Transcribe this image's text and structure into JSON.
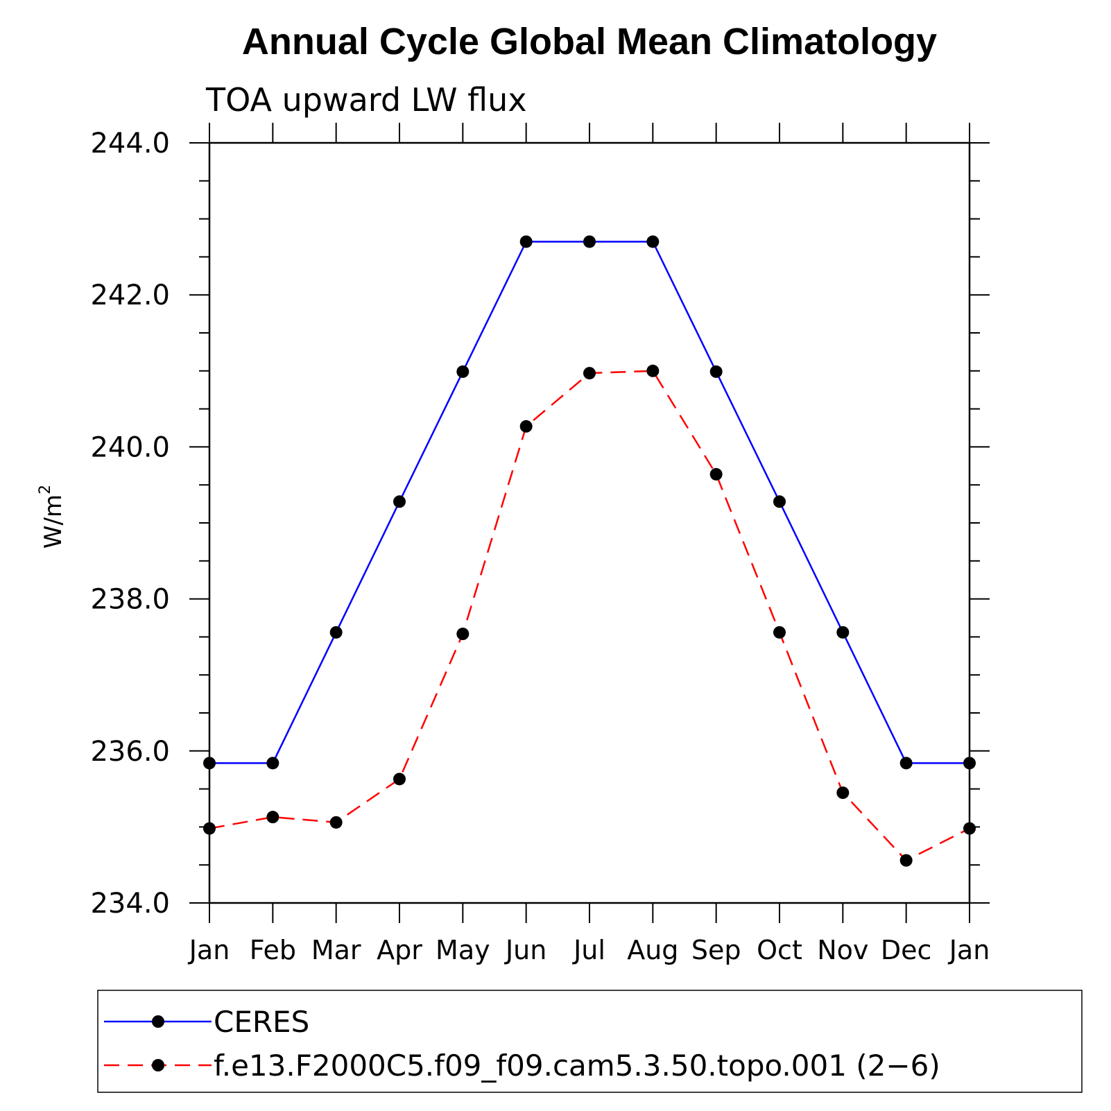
{
  "chart_data": {
    "type": "line",
    "title": "Annual Cycle Global Mean Climatology",
    "subtitle": "TOA upward LW flux",
    "ylabel_base": "W/m",
    "ylabel_sup": "2",
    "xlabel": "",
    "categories": [
      "Jan",
      "Feb",
      "Mar",
      "Apr",
      "May",
      "Jun",
      "Jul",
      "Aug",
      "Sep",
      "Oct",
      "Nov",
      "Dec",
      "Jan"
    ],
    "ylim": [
      234.0,
      244.0
    ],
    "yticks": [
      234.0,
      236.0,
      238.0,
      240.0,
      242.0,
      244.0
    ],
    "ytick_labels": [
      "234.0",
      "236.0",
      "238.0",
      "240.0",
      "242.0",
      "244.0"
    ],
    "yminor_step": 0.5,
    "grid": false,
    "legend_position": "bottom",
    "series": [
      {
        "name": "CERES",
        "color": "#0000ff",
        "dash": "solid",
        "marker": "circle",
        "values": [
          235.84,
          235.84,
          237.56,
          239.28,
          240.99,
          242.7,
          242.7,
          242.7,
          240.99,
          239.28,
          237.56,
          235.84,
          235.84
        ]
      },
      {
        "name": "f.e13.F2000C5.f09_f09.cam5.3.50.topo.001 (2−6)",
        "color": "#ff0000",
        "dash": "dashed",
        "marker": "circle",
        "values": [
          234.98,
          235.13,
          235.06,
          235.63,
          237.54,
          240.27,
          240.97,
          241.0,
          239.64,
          237.56,
          235.45,
          234.56,
          234.98
        ]
      }
    ]
  }
}
